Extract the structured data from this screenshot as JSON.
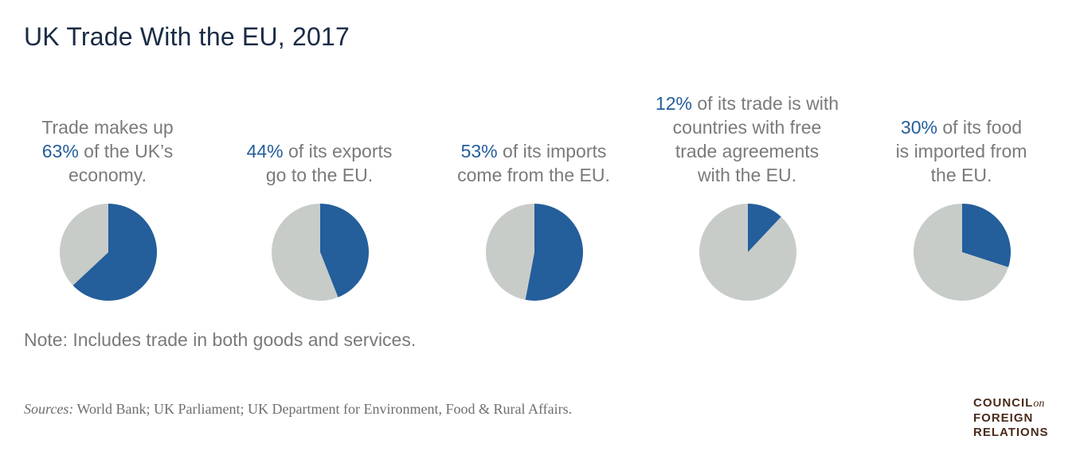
{
  "title": "UK Trade With the EU, 2017",
  "colors": {
    "highlight": "#245e9b",
    "remainder": "#c8ccc8"
  },
  "panels": [
    {
      "lines": [
        [
          "",
          "Trade makes up"
        ],
        [
          "63%",
          " of the UK’s"
        ],
        [
          "",
          "economy."
        ]
      ]
    },
    {
      "lines": [
        [
          "44%",
          " of its exports"
        ],
        [
          "",
          "go to the EU."
        ]
      ]
    },
    {
      "lines": [
        [
          "53%",
          " of its imports"
        ],
        [
          "",
          "come from the EU."
        ]
      ]
    },
    {
      "lines": [
        [
          "12%",
          " of its trade is with"
        ],
        [
          "",
          "countries with free"
        ],
        [
          "",
          "trade agreements"
        ],
        [
          "",
          "with the EU."
        ]
      ]
    },
    {
      "lines": [
        [
          "30%",
          " of its food"
        ],
        [
          "",
          "is imported from"
        ],
        [
          "",
          "the EU."
        ]
      ]
    }
  ],
  "chart_data": {
    "type": "pie",
    "charts": [
      {
        "values": [
          63,
          37
        ]
      },
      {
        "values": [
          44,
          56
        ]
      },
      {
        "values": [
          53,
          47
        ]
      },
      {
        "values": [
          12,
          88
        ]
      },
      {
        "values": [
          30,
          70
        ]
      }
    ]
  },
  "note": "Note: Includes trade in both goods and services.",
  "sources": {
    "lead": "Sources:",
    "text": " World Bank; UK Parliament; UK Department for Environment, Food & Rural Affairs."
  },
  "logo": {
    "line1": "COUNCIL",
    "on": "on",
    "line2": "FOREIGN",
    "line3": "RELATIONS"
  }
}
